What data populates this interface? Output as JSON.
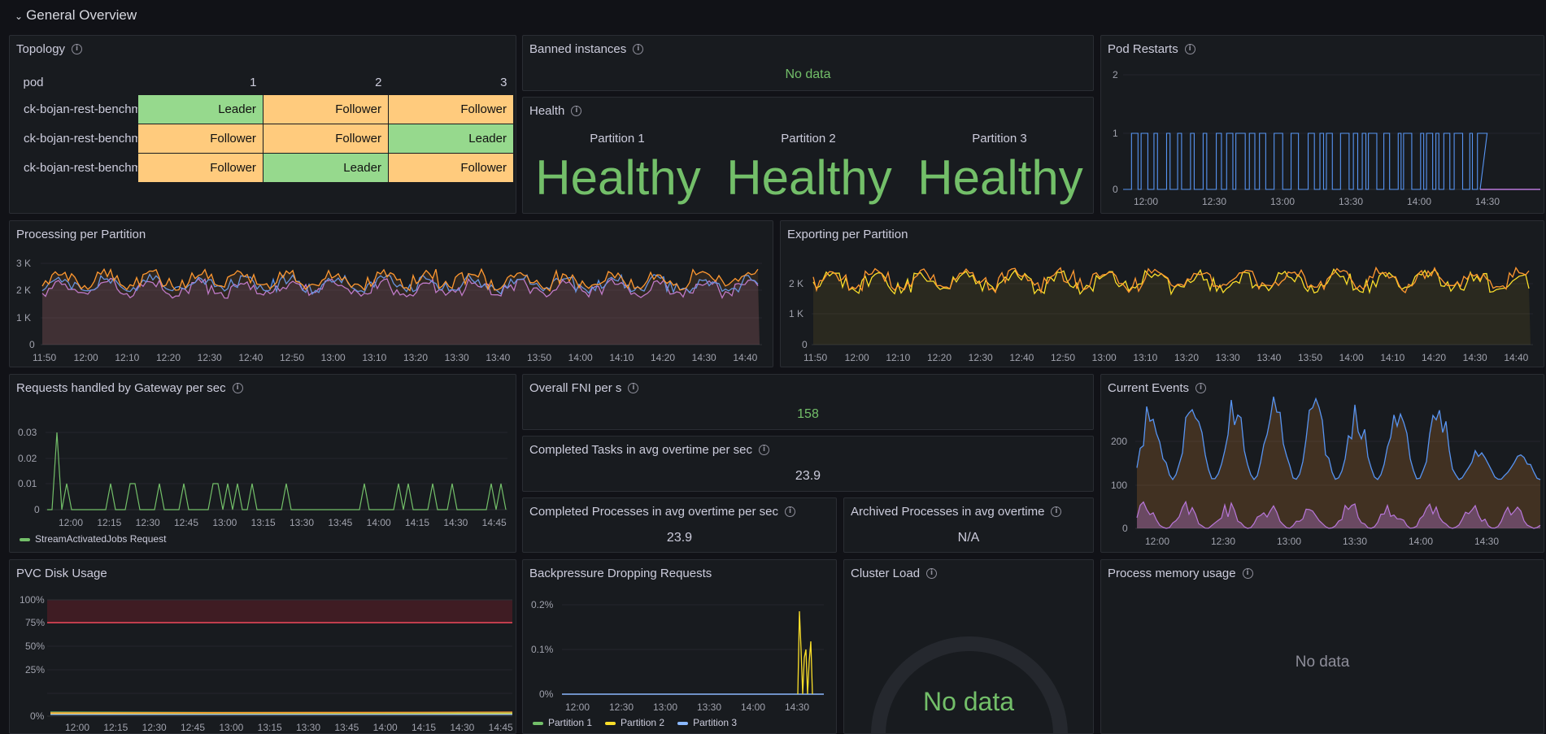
{
  "row": {
    "title": "General Overview",
    "chevron": "chevron-down-icon"
  },
  "topology": {
    "title": "Topology",
    "headers": [
      "pod",
      "1",
      "2",
      "3"
    ],
    "rows": [
      {
        "pod": "ck-bojan-rest-benchmark",
        "cells": [
          "Leader",
          "Follower",
          "Follower"
        ]
      },
      {
        "pod": "ck-bojan-rest-benchmark",
        "cells": [
          "Follower",
          "Follower",
          "Leader"
        ]
      },
      {
        "pod": "ck-bojan-rest-benchmark",
        "cells": [
          "Follower",
          "Leader",
          "Follower"
        ]
      }
    ]
  },
  "banned": {
    "title": "Banned instances",
    "value": "No data"
  },
  "health": {
    "title": "Health",
    "partitions": [
      {
        "label": "Partition 1",
        "value": "Healthy"
      },
      {
        "label": "Partition 2",
        "value": "Healthy"
      },
      {
        "label": "Partition 3",
        "value": "Healthy"
      }
    ]
  },
  "pod_restarts": {
    "title": "Pod Restarts",
    "y_ticks": [
      "2",
      "1",
      "0"
    ],
    "x_ticks": [
      "12:00",
      "12:30",
      "13:00",
      "13:30",
      "14:00",
      "14:30"
    ]
  },
  "processing": {
    "title": "Processing per Partition",
    "y_ticks": [
      "3 K",
      "2 K",
      "1 K",
      "0"
    ],
    "x_ticks": [
      "11:50",
      "12:00",
      "12:10",
      "12:20",
      "12:30",
      "12:40",
      "12:50",
      "13:00",
      "13:10",
      "13:20",
      "13:30",
      "13:40",
      "13:50",
      "14:00",
      "14:10",
      "14:20",
      "14:30",
      "14:40"
    ]
  },
  "exporting": {
    "title": "Exporting per Partition",
    "y_ticks": [
      "2 K",
      "1 K",
      "0"
    ],
    "x_ticks": [
      "11:50",
      "12:00",
      "12:10",
      "12:20",
      "12:30",
      "12:40",
      "12:50",
      "13:00",
      "13:10",
      "13:20",
      "13:30",
      "13:40",
      "13:50",
      "14:00",
      "14:10",
      "14:20",
      "14:30",
      "14:40"
    ]
  },
  "requests": {
    "title": "Requests handled by Gateway per sec",
    "y_ticks": [
      "0.03",
      "0.02",
      "0.01",
      "0"
    ],
    "x_ticks": [
      "12:00",
      "12:15",
      "12:30",
      "12:45",
      "13:00",
      "13:15",
      "13:30",
      "13:45",
      "14:00",
      "14:15",
      "14:30",
      "14:45"
    ],
    "legend": "StreamActivatedJobs Request",
    "legend_color": "#73bf69"
  },
  "fni": {
    "title": "Overall FNI per s",
    "value": "158"
  },
  "completed_tasks": {
    "title": "Completed Tasks in avg overtime per sec",
    "value": "23.9"
  },
  "completed_processes": {
    "title": "Completed Processes in avg overtime per sec",
    "value": "23.9"
  },
  "archived_processes": {
    "title": "Archived Processes in avg overtime",
    "value": "N/A"
  },
  "current_events": {
    "title": "Current Events",
    "y_ticks": [
      "200",
      "100",
      "0"
    ],
    "x_ticks": [
      "12:00",
      "12:30",
      "13:00",
      "13:30",
      "14:00",
      "14:30"
    ]
  },
  "pvc": {
    "title": "PVC Disk Usage",
    "y_ticks": [
      "100%",
      "75%",
      "50%",
      "25%",
      "0%"
    ],
    "x_ticks": [
      "12:00",
      "12:15",
      "12:30",
      "12:45",
      "13:00",
      "13:15",
      "13:30",
      "13:45",
      "14:00",
      "14:15",
      "14:30",
      "14:45"
    ]
  },
  "backpressure": {
    "title": "Backpressure Dropping Requests",
    "y_ticks": [
      "0.2%",
      "0.1%",
      "0%"
    ],
    "x_ticks": [
      "12:00",
      "12:30",
      "13:00",
      "13:30",
      "14:00",
      "14:30"
    ],
    "legend": [
      {
        "name": "Partition 1",
        "color": "#73bf69"
      },
      {
        "name": "Partition 2",
        "color": "#fade2a"
      },
      {
        "name": "Partition 3",
        "color": "#8ab8ff"
      }
    ]
  },
  "cluster_load": {
    "title": "Cluster Load",
    "value": "No data"
  },
  "memory": {
    "title": "Process memory usage",
    "value": "No data"
  },
  "colors": {
    "green": "#73bf69",
    "orange": "#ff9830",
    "yellow": "#fade2a",
    "blue": "#5794f2",
    "purple": "#b877d9",
    "red": "#f2495c"
  }
}
